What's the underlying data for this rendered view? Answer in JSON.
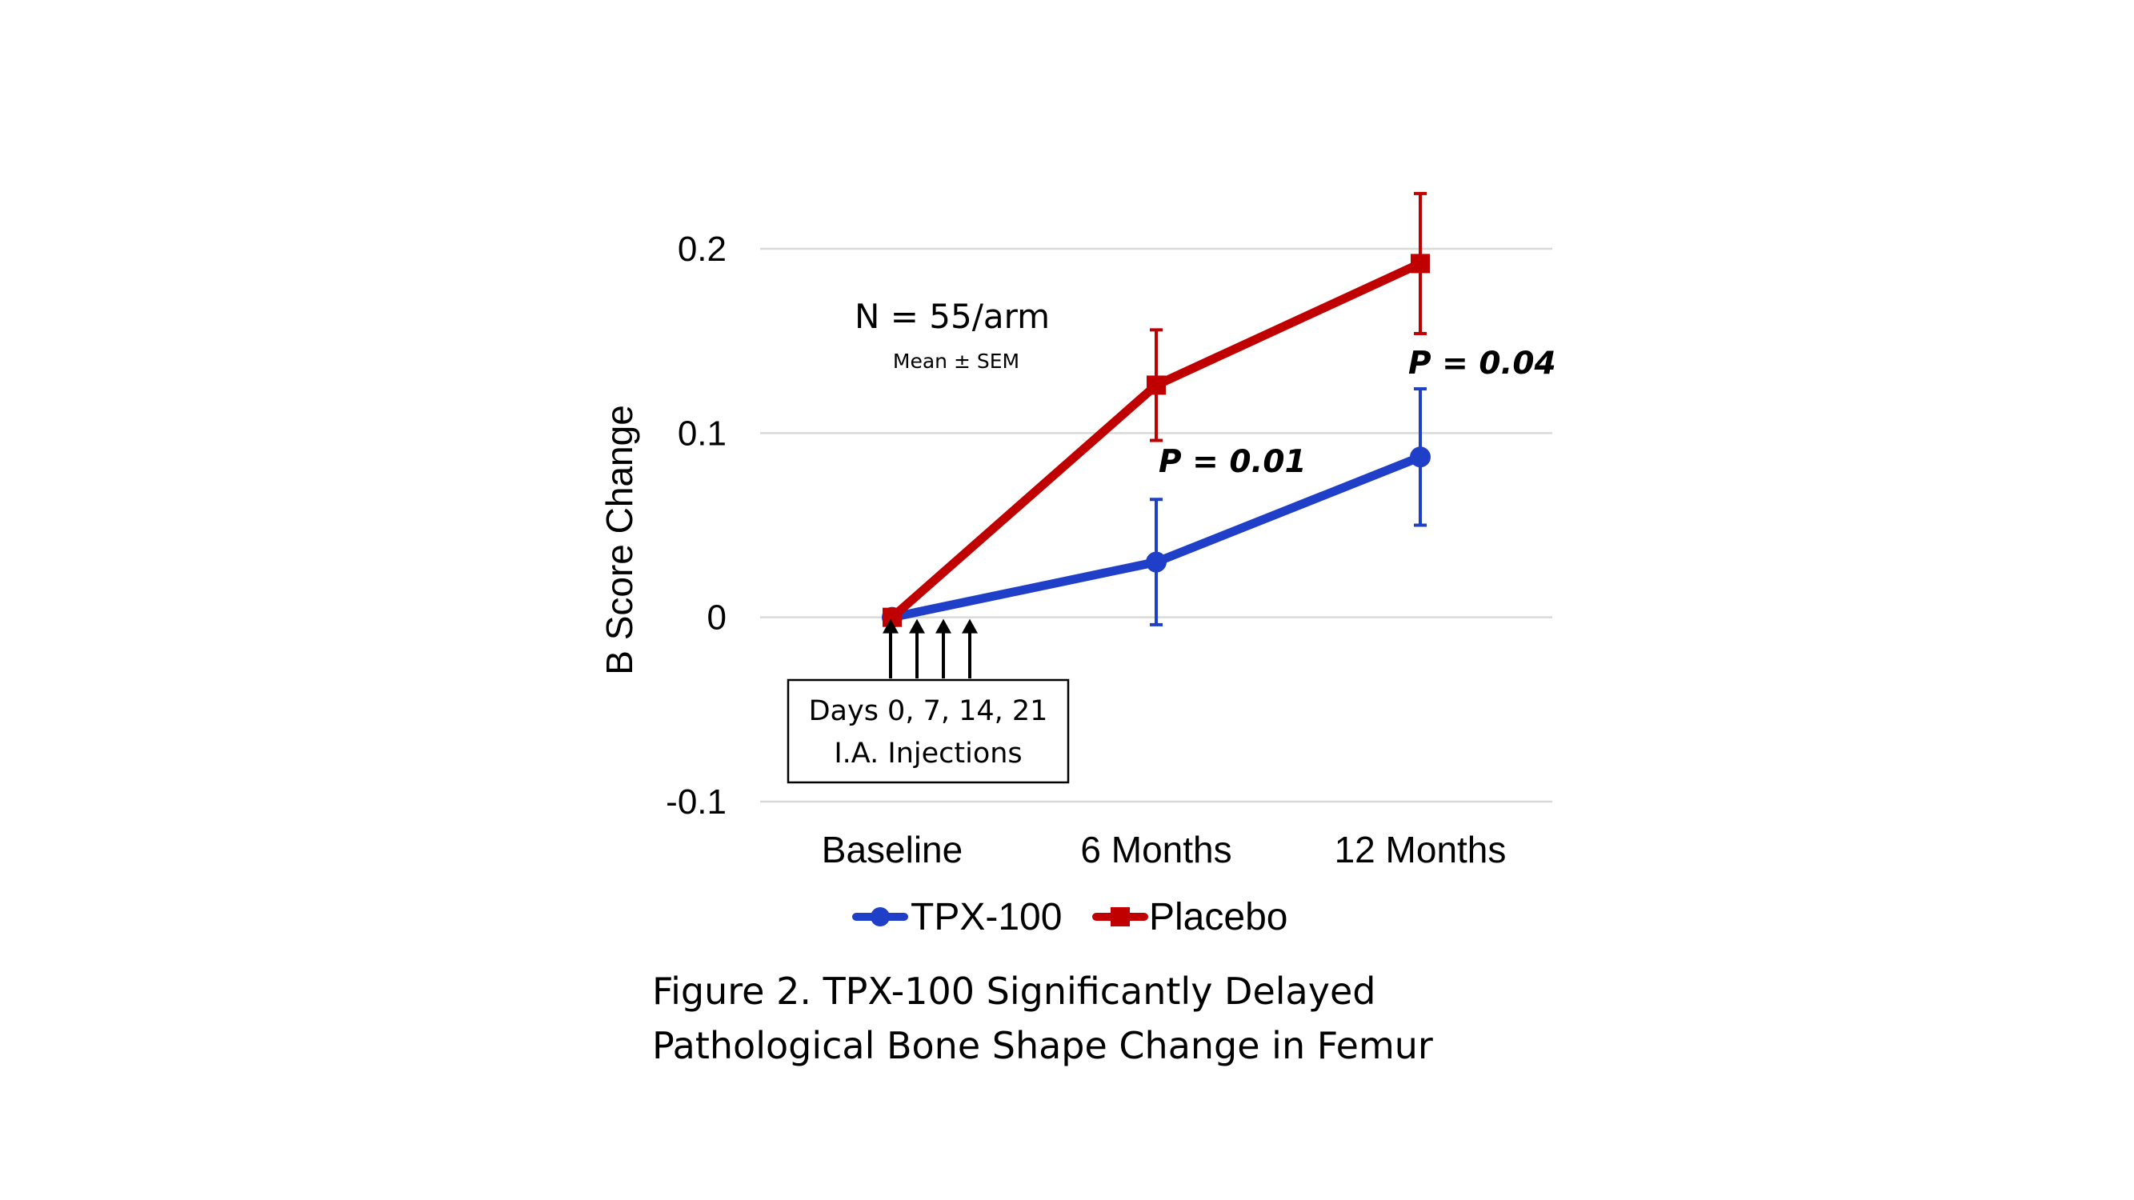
{
  "chart_data": {
    "type": "line",
    "title": "",
    "xlabel": "",
    "ylabel": "B Score Change",
    "categories": [
      "Baseline",
      "6 Months",
      "12 Months"
    ],
    "ylim": [
      -0.1,
      0.2
    ],
    "yticks": [
      -0.1,
      0,
      0.1,
      0.2
    ],
    "ytick_labels": [
      "-0.1",
      "0",
      "0.1",
      "0.2"
    ],
    "grid": "horizontal",
    "legend_position": "bottom",
    "series": [
      {
        "name": "TPX-100",
        "color": "#1f3fc8",
        "marker": "circle",
        "values": [
          0,
          0.03,
          0.087
        ],
        "errors": [
          0,
          0.034,
          0.037
        ]
      },
      {
        "name": "Placebo",
        "color": "#c00000",
        "marker": "square",
        "values": [
          0,
          0.126,
          0.192
        ],
        "errors": [
          0,
          0.03,
          0.038
        ]
      }
    ],
    "annotations": {
      "n_text": "N = 55/arm",
      "stat_text": "Mean ± SEM",
      "pvalues": [
        {
          "category": "6 Months",
          "text": "P = 0.01"
        },
        {
          "category": "12 Months",
          "text": "P = 0.04"
        }
      ],
      "injection_box": {
        "line1": "Days 0, 7, 14, 21",
        "line2": "I.A. Injections",
        "arrow_count": 4
      }
    }
  },
  "caption": {
    "line1": "Figure 2.  TPX-100 Significantly Delayed",
    "line2": "Pathological Bone Shape Change in Femur"
  }
}
